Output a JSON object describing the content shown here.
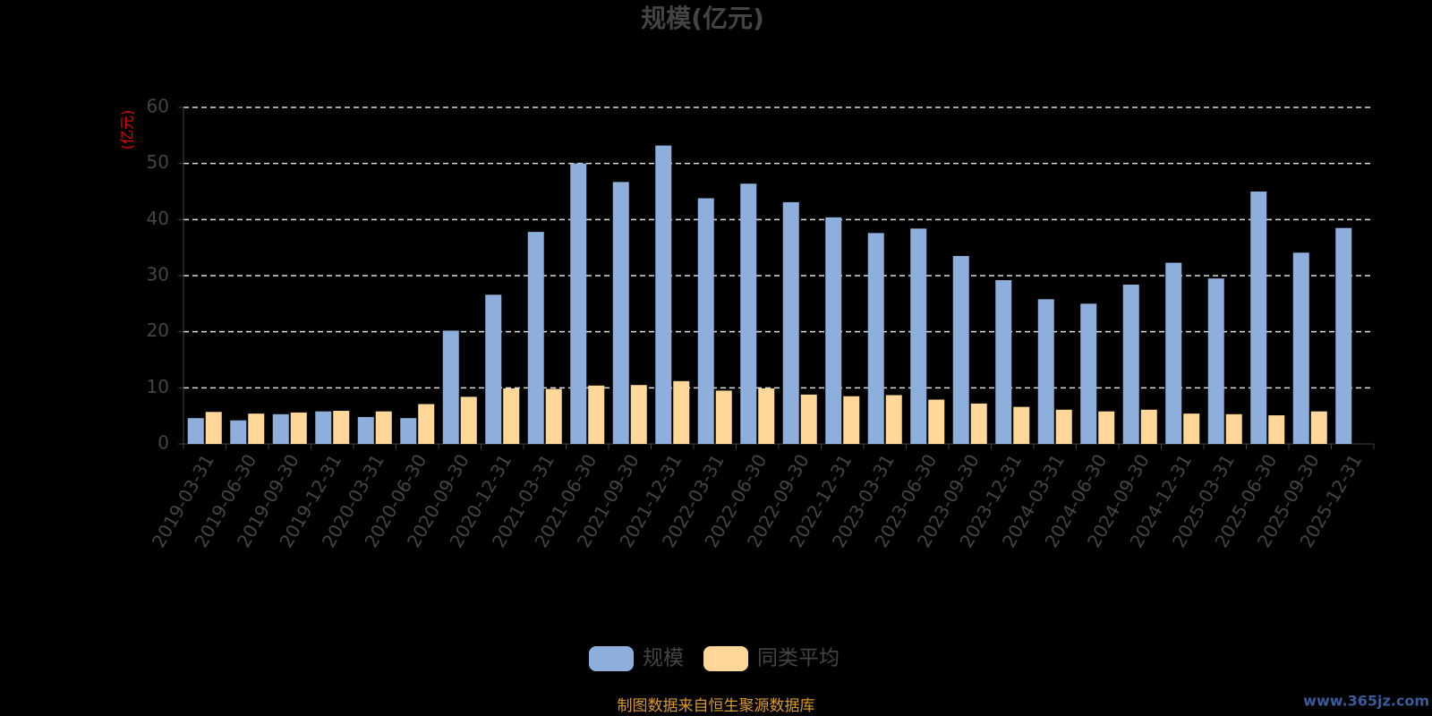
{
  "chart_data": {
    "type": "bar",
    "title": "规模(亿元)",
    "y_label": "(亿元)",
    "categories": [
      "2019-03-31",
      "2019-06-30",
      "2019-09-30",
      "2019-12-31",
      "2020-03-31",
      "2020-06-30",
      "2020-09-30",
      "2020-12-31",
      "2021-03-31",
      "2021-06-30",
      "2021-09-30",
      "2021-12-31",
      "2022-03-31",
      "2022-06-30",
      "2022-09-30",
      "2022-12-31",
      "2023-03-31",
      "2023-06-30",
      "2023-09-30",
      "2023-12-31",
      "2024-03-31",
      "2024-06-30",
      "2024-09-30",
      "2024-12-31",
      "2025-03-31",
      "2025-06-30",
      "2025-09-30",
      "2025-12-31"
    ],
    "series": [
      {
        "name": "规模",
        "color": "#8eaedc",
        "values": [
          4.6,
          4.2,
          5.3,
          5.8,
          4.8,
          4.6,
          20.2,
          26.6,
          37.8,
          50,
          46.7,
          53.2,
          43.8,
          46.4,
          43.1,
          40.4,
          37.6,
          38.4,
          33.5,
          29.2,
          25.8,
          25.0,
          28.4,
          32.3,
          29.5,
          45.0,
          34.1,
          38.5
        ]
      },
      {
        "name": "同类平均",
        "color": "#ffd899",
        "values": [
          5.7,
          5.4,
          5.6,
          5.9,
          5.8,
          7.1,
          8.4,
          9.9,
          9.8,
          10.4,
          10.5,
          11.2,
          9.5,
          9.9,
          8.8,
          8.5,
          8.7,
          7.9,
          7.2,
          6.6,
          6.1,
          5.8,
          6.1,
          5.4,
          5.3,
          5.1,
          5.8,
          null
        ]
      }
    ],
    "ylim": [
      0,
      60
    ],
    "yticks": [
      0,
      10,
      20,
      30,
      40,
      50,
      60
    ],
    "grid": true,
    "legend": "bottom",
    "source": "制图数据来自恒生聚源数据库",
    "watermark": "www.365jz.com"
  }
}
